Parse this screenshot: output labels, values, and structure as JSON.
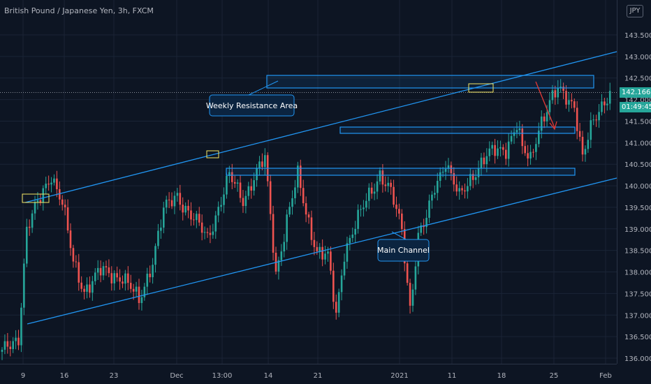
{
  "chart": {
    "title": "British Pound / Japanese Yen, 3h, FXCM",
    "currency_badge": "JPY",
    "last_price": "142.166",
    "countdown": "01:49:45"
  },
  "colors": {
    "background": "#0d1523",
    "up": "#26a69a",
    "down": "#ef5350",
    "annotation": "#2196f3",
    "highlight": "#f5e663",
    "arrow": "#e53935"
  },
  "annotations": {
    "weekly_resistance": "Weekly Resistance Area",
    "main_channel": "Main Channel"
  },
  "chart_data": {
    "type": "candlestick",
    "symbol": "GBPJPY",
    "timeframe": "3h",
    "source": "FXCM",
    "y_ticks": [
      "143.500",
      "143.000",
      "142.500",
      "142.000",
      "141.500",
      "141.000",
      "140.500",
      "140.000",
      "139.500",
      "139.000",
      "138.500",
      "138.000",
      "137.500",
      "137.000",
      "136.500",
      "136.000"
    ],
    "x_ticks": [
      "9",
      "16",
      "23",
      "Dec",
      "13:00",
      "14",
      "21",
      "2021",
      "11",
      "18",
      "25",
      "Feb"
    ],
    "ylim": [
      135.9,
      144.0
    ],
    "path": [
      [
        0,
        136.1
      ],
      [
        6,
        136.5
      ],
      [
        9,
        139.0
      ],
      [
        14,
        139.7
      ],
      [
        18,
        140.3
      ],
      [
        22,
        139.6
      ],
      [
        26,
        138.2
      ],
      [
        30,
        137.6
      ],
      [
        36,
        138.0
      ],
      [
        44,
        137.9
      ],
      [
        50,
        137.3
      ],
      [
        55,
        138.3
      ],
      [
        59,
        139.4
      ],
      [
        64,
        139.8
      ],
      [
        70,
        139.2
      ],
      [
        75,
        138.8
      ],
      [
        79,
        139.5
      ],
      [
        83,
        140.2
      ],
      [
        88,
        139.7
      ],
      [
        92,
        140.2
      ],
      [
        96,
        140.6
      ],
      [
        100,
        138.0
      ],
      [
        104,
        139.2
      ],
      [
        108,
        140.2
      ],
      [
        111,
        139.4
      ],
      [
        115,
        138.5
      ],
      [
        119,
        138.3
      ],
      [
        122,
        137.0
      ],
      [
        125,
        138.5
      ],
      [
        130,
        139.2
      ],
      [
        134,
        139.8
      ],
      [
        138,
        140.3
      ],
      [
        142,
        139.8
      ],
      [
        146,
        139.0
      ],
      [
        149,
        137.2
      ],
      [
        152,
        138.8
      ],
      [
        155,
        139.2
      ],
      [
        158,
        140.0
      ],
      [
        162,
        140.6
      ],
      [
        164,
        140.2
      ],
      [
        167,
        139.7
      ],
      [
        172,
        140.3
      ],
      [
        176,
        140.6
      ],
      [
        180,
        140.8
      ],
      [
        184,
        140.9
      ],
      [
        188,
        141.4
      ],
      [
        190,
        140.8
      ],
      [
        193,
        140.6
      ],
      [
        196,
        141.4
      ],
      [
        200,
        141.9
      ],
      [
        203,
        142.2
      ],
      [
        206,
        142.1
      ],
      [
        209,
        141.9
      ],
      [
        212,
        140.6
      ],
      [
        215,
        141.3
      ],
      [
        218,
        141.8
      ],
      [
        222,
        142.2
      ]
    ]
  }
}
